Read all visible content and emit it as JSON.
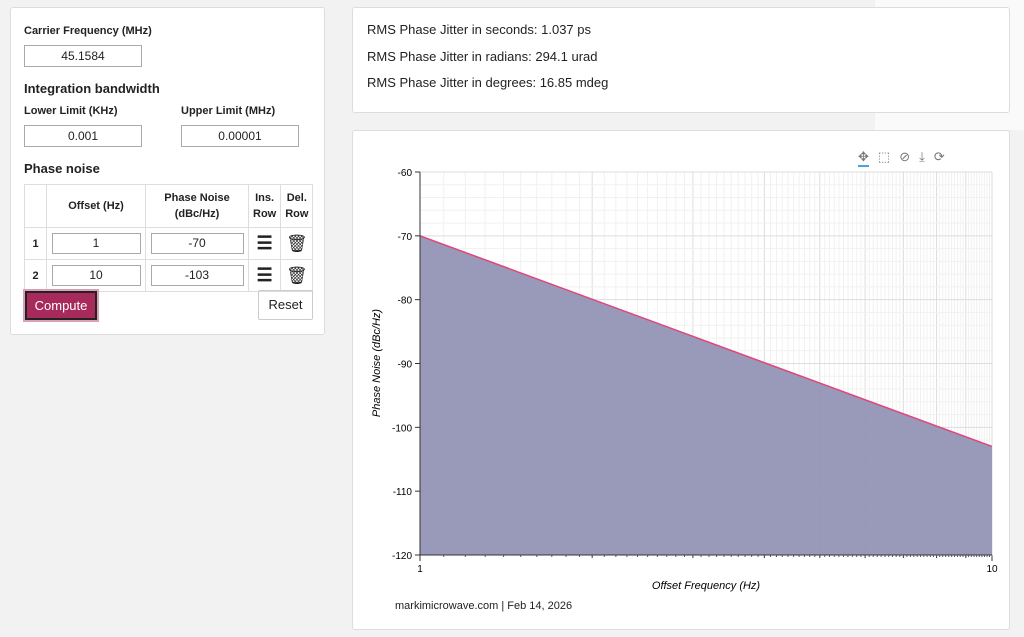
{
  "form": {
    "carrier_label": "Carrier Frequency (MHz)",
    "carrier_value": "45.1584",
    "integration_title": "Integration bandwidth",
    "lower_label": "Lower Limit (KHz)",
    "lower_value": "0.001",
    "upper_label": "Upper Limit (MHz)",
    "upper_value": "0.00001",
    "phase_noise_title": "Phase noise",
    "table": {
      "headers": [
        "",
        "Offset (Hz)",
        "Phase Noise (dBc/Hz)",
        "Ins. Row",
        "Del. Row"
      ],
      "rows": [
        {
          "index": "1",
          "offset": "1",
          "noise": "-70"
        },
        {
          "index": "2",
          "offset": "10",
          "noise": "-103"
        }
      ]
    },
    "compute_label": "Compute",
    "reset_label": "Reset"
  },
  "results": [
    "RMS Phase Jitter in seconds: 1.037 ps",
    "RMS Phase Jitter in radians: 294.1 urad",
    "RMS Phase Jitter in degrees: 16.85 mdeg"
  ],
  "toolbar": [
    "pan-icon",
    "box-zoom-icon",
    "wheel-zoom-icon",
    "save-icon",
    "reset-icon"
  ],
  "footer": "markimicrowave.com | Feb 14, 2026",
  "colors": {
    "accent": "#a8295b",
    "line": "#e0457b",
    "fill": "#9394b5"
  },
  "chart_data": {
    "type": "area",
    "x": [
      1,
      10
    ],
    "y": [
      -70,
      -103
    ],
    "xlabel": "Offset Frequency (Hz)",
    "ylabel": "Phase Noise (dBc/Hz)",
    "xscale": "log",
    "xlim": [
      1,
      10
    ],
    "ylim": [
      -120,
      -60
    ],
    "xticks": [
      "1",
      "10"
    ],
    "yticks": [
      "-60",
      "-70",
      "-80",
      "-90",
      "-100",
      "-110",
      "-120"
    ],
    "grid": true
  }
}
